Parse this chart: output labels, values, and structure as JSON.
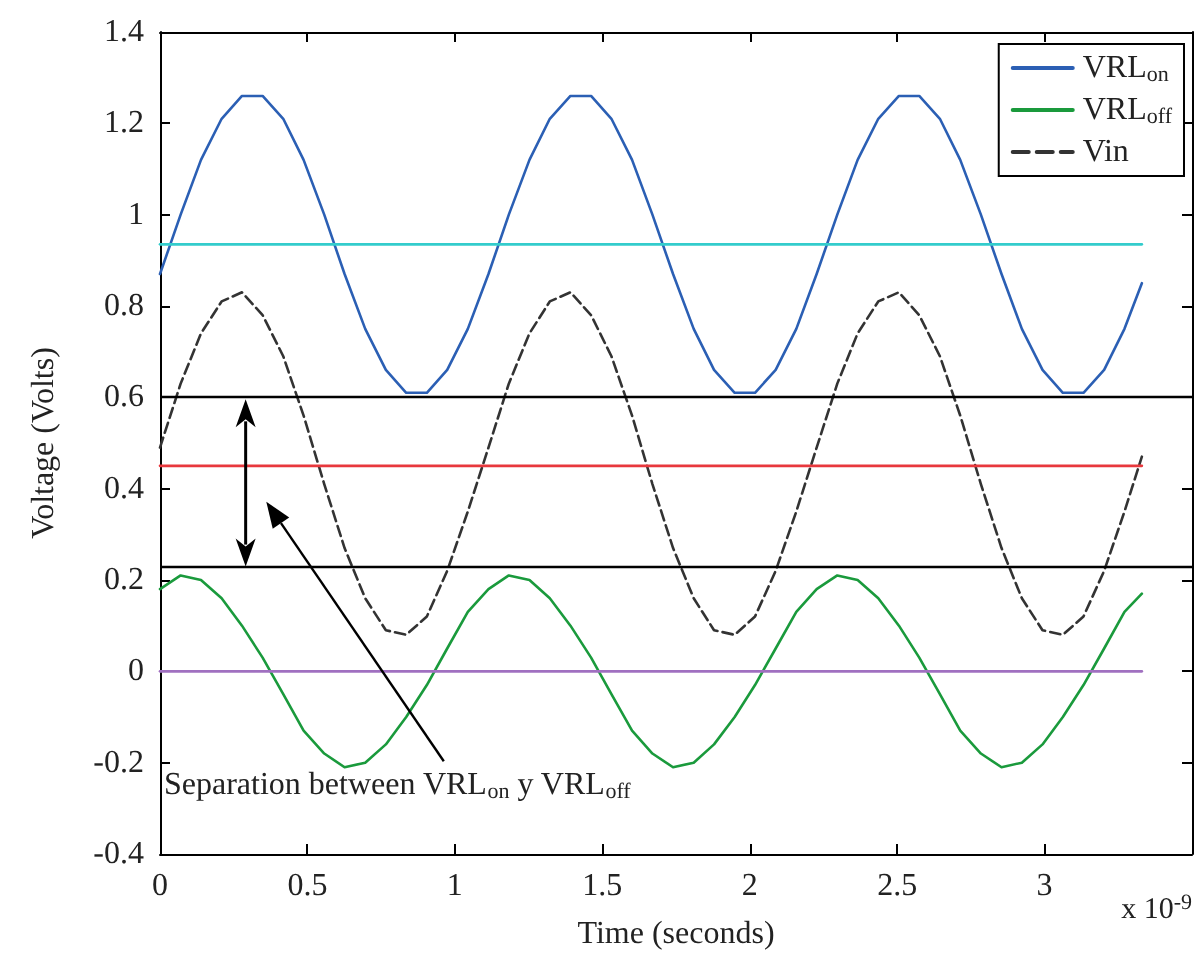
{
  "chart_data": {
    "type": "line",
    "xlabel": "Time (seconds)",
    "ylabel": "Voltage (Volts)",
    "annotations": [
      "Separation between VRL$_{on}$ y VRL$_{off}$",
      "x 10$^{-9}$"
    ],
    "x": [
      0,
      0.07,
      0.139,
      0.209,
      0.278,
      0.348,
      0.418,
      0.487,
      0.557,
      0.626,
      0.696,
      0.766,
      0.835,
      0.905,
      0.974,
      1.044,
      1.114,
      1.183,
      1.253,
      1.322,
      1.392,
      1.462,
      1.531,
      1.601,
      1.67,
      1.74,
      1.81,
      1.879,
      1.949,
      2.018,
      2.088,
      2.158,
      2.227,
      2.297,
      2.366,
      2.436,
      2.506,
      2.575,
      2.645,
      2.714,
      2.784,
      2.854,
      2.923,
      2.993,
      3.062,
      3.132,
      3.202,
      3.271,
      3.33
    ],
    "series": [
      {
        "name": "VRL$_{on}$",
        "color": "#2b5fb4",
        "values": [
          0.87,
          1.0,
          1.12,
          1.21,
          1.26,
          1.26,
          1.21,
          1.12,
          1.0,
          0.87,
          0.75,
          0.66,
          0.61,
          0.61,
          0.66,
          0.75,
          0.87,
          1.0,
          1.12,
          1.21,
          1.26,
          1.26,
          1.21,
          1.12,
          1.0,
          0.87,
          0.75,
          0.66,
          0.61,
          0.61,
          0.66,
          0.75,
          0.87,
          1.0,
          1.12,
          1.21,
          1.26,
          1.26,
          1.21,
          1.12,
          1.0,
          0.87,
          0.75,
          0.66,
          0.61,
          0.61,
          0.66,
          0.75,
          0.85
        ]
      },
      {
        "name": "VRL$_{off}$",
        "color": "#1a9a3c",
        "values": [
          0.18,
          0.21,
          0.2,
          0.16,
          0.1,
          0.03,
          -0.05,
          -0.13,
          -0.18,
          -0.21,
          -0.2,
          -0.16,
          -0.1,
          -0.03,
          0.05,
          0.13,
          0.18,
          0.21,
          0.2,
          0.16,
          0.1,
          0.03,
          -0.05,
          -0.13,
          -0.18,
          -0.21,
          -0.2,
          -0.16,
          -0.1,
          -0.03,
          0.05,
          0.13,
          0.18,
          0.21,
          0.2,
          0.16,
          0.1,
          0.03,
          -0.05,
          -0.13,
          -0.18,
          -0.21,
          -0.2,
          -0.16,
          -0.1,
          -0.03,
          0.05,
          0.13,
          0.17
        ]
      },
      {
        "name": "Vin",
        "color": "#333333",
        "line_style": "dashed",
        "values": [
          0.49,
          0.63,
          0.74,
          0.81,
          0.83,
          0.78,
          0.69,
          0.56,
          0.41,
          0.27,
          0.16,
          0.09,
          0.08,
          0.12,
          0.22,
          0.35,
          0.49,
          0.63,
          0.74,
          0.81,
          0.83,
          0.78,
          0.69,
          0.56,
          0.41,
          0.27,
          0.16,
          0.09,
          0.08,
          0.12,
          0.22,
          0.35,
          0.49,
          0.63,
          0.74,
          0.81,
          0.83,
          0.78,
          0.69,
          0.56,
          0.41,
          0.27,
          0.16,
          0.09,
          0.08,
          0.12,
          0.22,
          0.35,
          0.47
        ]
      },
      {
        "color": "#33cccc",
        "values": [
          0.935,
          0.935,
          0.935,
          0.935,
          0.935,
          0.935,
          0.935,
          0.935,
          0.935,
          0.935,
          0.935,
          0.935,
          0.935,
          0.935,
          0.935,
          0.935,
          0.935,
          0.935,
          0.935,
          0.935,
          0.935,
          0.935,
          0.935,
          0.935,
          0.935,
          0.935,
          0.935,
          0.935,
          0.935,
          0.935,
          0.935,
          0.935,
          0.935,
          0.935,
          0.935,
          0.935,
          0.935,
          0.935,
          0.935,
          0.935,
          0.935,
          0.935,
          0.935,
          0.935,
          0.935,
          0.935,
          0.935,
          0.935,
          0.935
        ]
      },
      {
        "color": "#e8383d",
        "values": [
          0.45,
          0.45,
          0.45,
          0.45,
          0.45,
          0.45,
          0.45,
          0.45,
          0.45,
          0.45,
          0.45,
          0.45,
          0.45,
          0.45,
          0.45,
          0.45,
          0.45,
          0.45,
          0.45,
          0.45,
          0.45,
          0.45,
          0.45,
          0.45,
          0.45,
          0.45,
          0.45,
          0.45,
          0.45,
          0.45,
          0.45,
          0.45,
          0.45,
          0.45,
          0.45,
          0.45,
          0.45,
          0.45,
          0.45,
          0.45,
          0.45,
          0.45,
          0.45,
          0.45,
          0.45,
          0.45,
          0.45,
          0.45,
          0.45
        ]
      },
      {
        "color": "#a070c0",
        "values": [
          0,
          0,
          0,
          0,
          0,
          0,
          0,
          0,
          0,
          0,
          0,
          0,
          0,
          0,
          0,
          0,
          0,
          0,
          0,
          0,
          0,
          0,
          0,
          0,
          0,
          0,
          0,
          0,
          0,
          0,
          0,
          0,
          0,
          0,
          0,
          0,
          0,
          0,
          0,
          0,
          0,
          0,
          0,
          0,
          0,
          0,
          0,
          0,
          0
        ]
      }
    ],
    "ref_lines": [
      {
        "axis": "y",
        "value": 0.6,
        "color": "#000000"
      },
      {
        "axis": "y",
        "value": 0.225,
        "color": "#000000"
      }
    ],
    "xlim": [
      0,
      3.5
    ],
    "xticks": [
      0,
      0.5,
      1,
      1.5,
      2,
      2.5,
      3
    ],
    "ylim": [
      -0.4,
      1.4
    ],
    "yticks": [
      -0.4,
      -0.2,
      0,
      0.2,
      0.4,
      0.6,
      0.8,
      1,
      1.2,
      1.4
    ],
    "grid": false,
    "legend": "top right",
    "marker": "none",
    "line_style": "solid"
  }
}
